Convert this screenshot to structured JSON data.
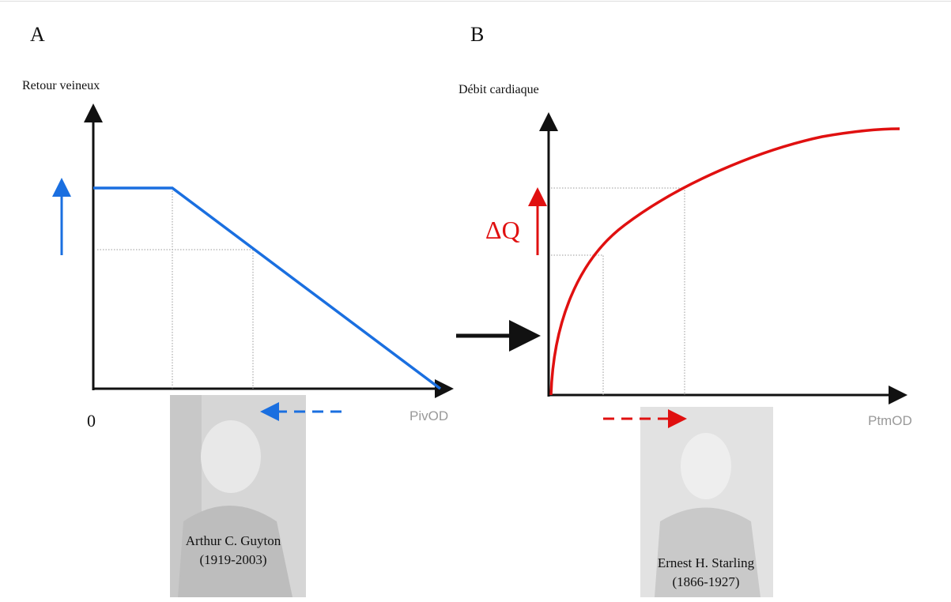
{
  "panels": [
    {
      "letter": "A",
      "y_axis_label": "Retour veineux",
      "origin_label": "0",
      "x_axis_label": "PivOD",
      "portrait": {
        "name": "Arthur C. Guyton",
        "dates": "(1919-2003)"
      }
    },
    {
      "letter": "B",
      "y_axis_label": "Débit cardiaque",
      "delta_label": "ΔQ",
      "x_axis_label": "PtmOD",
      "portrait": {
        "name": "Ernest H. Starling",
        "dates": "(1866-1927)"
      }
    }
  ]
}
